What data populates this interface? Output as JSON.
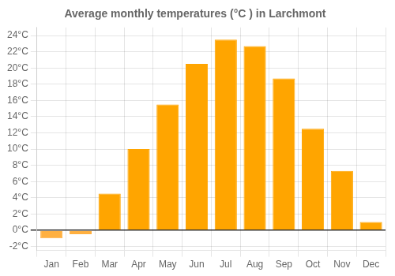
{
  "chart_data": {
    "type": "bar",
    "title": "Average monthly temperatures (°C ) in Larchmont",
    "categories": [
      "Jan",
      "Feb",
      "Mar",
      "Apr",
      "May",
      "Jun",
      "Jul",
      "Aug",
      "Sep",
      "Oct",
      "Nov",
      "Dec"
    ],
    "values": [
      -1.0,
      -0.5,
      4.5,
      10.0,
      15.5,
      20.5,
      23.5,
      22.7,
      18.7,
      12.5,
      7.3,
      1.0
    ],
    "colors": [
      "#FFB040",
      "#FFB040",
      "#FFA500",
      "#FFA500",
      "#FFA500",
      "#FFA500",
      "#FFA500",
      "#FFA500",
      "#FFA500",
      "#FFA500",
      "#FFA500",
      "#FFA500"
    ],
    "ylim": [
      -2.5,
      25
    ],
    "yticks": [
      {
        "value": -2,
        "label": "-2°C"
      },
      {
        "value": 0,
        "label": "0°C"
      },
      {
        "value": 2,
        "label": "2°C"
      },
      {
        "value": 4,
        "label": "4°C"
      },
      {
        "value": 6,
        "label": "6°C"
      },
      {
        "value": 8,
        "label": "8°C"
      },
      {
        "value": 10,
        "label": "10°C"
      },
      {
        "value": 12,
        "label": "12°C"
      },
      {
        "value": 14,
        "label": "14°C"
      },
      {
        "value": 16,
        "label": "16°C"
      },
      {
        "value": 18,
        "label": "18°C"
      },
      {
        "value": 20,
        "label": "20°C"
      },
      {
        "value": 22,
        "label": "22°C"
      },
      {
        "value": 24,
        "label": "24°C"
      }
    ],
    "grid": true
  }
}
